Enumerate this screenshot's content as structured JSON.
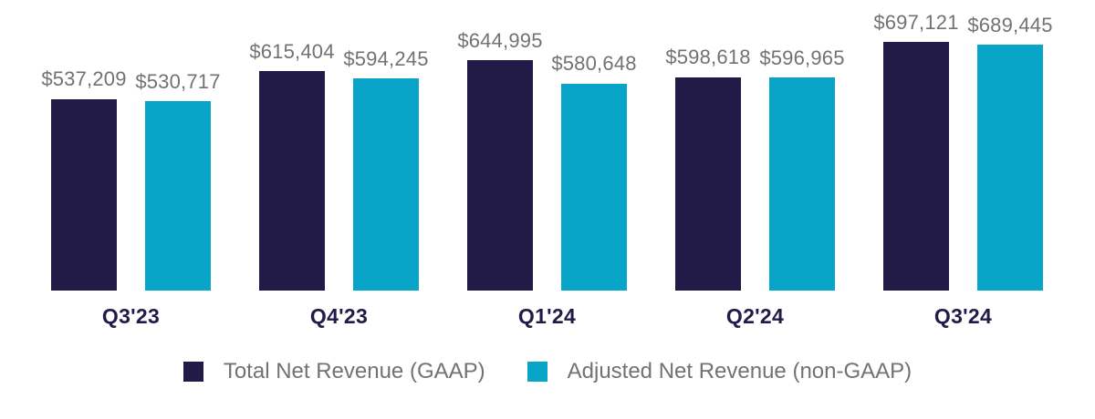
{
  "colors": {
    "gaap_bar": "#221B47",
    "non_gaap_bar": "#09A5C8",
    "value_label_text": "#717275",
    "category_label_text": "#221B47",
    "background": "#FFFFFF"
  },
  "chart_data": {
    "type": "bar",
    "title": "",
    "xlabel": "",
    "ylabel": "",
    "categories": [
      "Q3'23",
      "Q4'23",
      "Q1'24",
      "Q2'24",
      "Q3'24"
    ],
    "series": [
      {
        "name": "Total Net Revenue (GAAP)",
        "color": "#221B47",
        "values": [
          537209,
          615404,
          644995,
          598618,
          697121
        ],
        "value_labels": [
          "$537,209",
          "$615,404",
          "$644,995",
          "$598,618",
          "$697,121"
        ]
      },
      {
        "name": "Adjusted Net Revenue (non-GAAP)",
        "color": "#09A5C8",
        "values": [
          530717,
          594245,
          580648,
          596965,
          689445
        ],
        "value_labels": [
          "$530,717",
          "$594,245",
          "$580,648",
          "$596,965",
          "$689,445"
        ]
      }
    ],
    "value_prefix": "$",
    "ylim": [
      0,
      697121
    ],
    "grid": false,
    "axis_lines": false,
    "data_labels": true,
    "legend_position": "bottom"
  },
  "legend": {
    "items": [
      {
        "label": "Total Net Revenue (GAAP)",
        "color": "#221B47"
      },
      {
        "label": "Adjusted Net Revenue (non-GAAP)",
        "color": "#09A5C8"
      }
    ]
  }
}
